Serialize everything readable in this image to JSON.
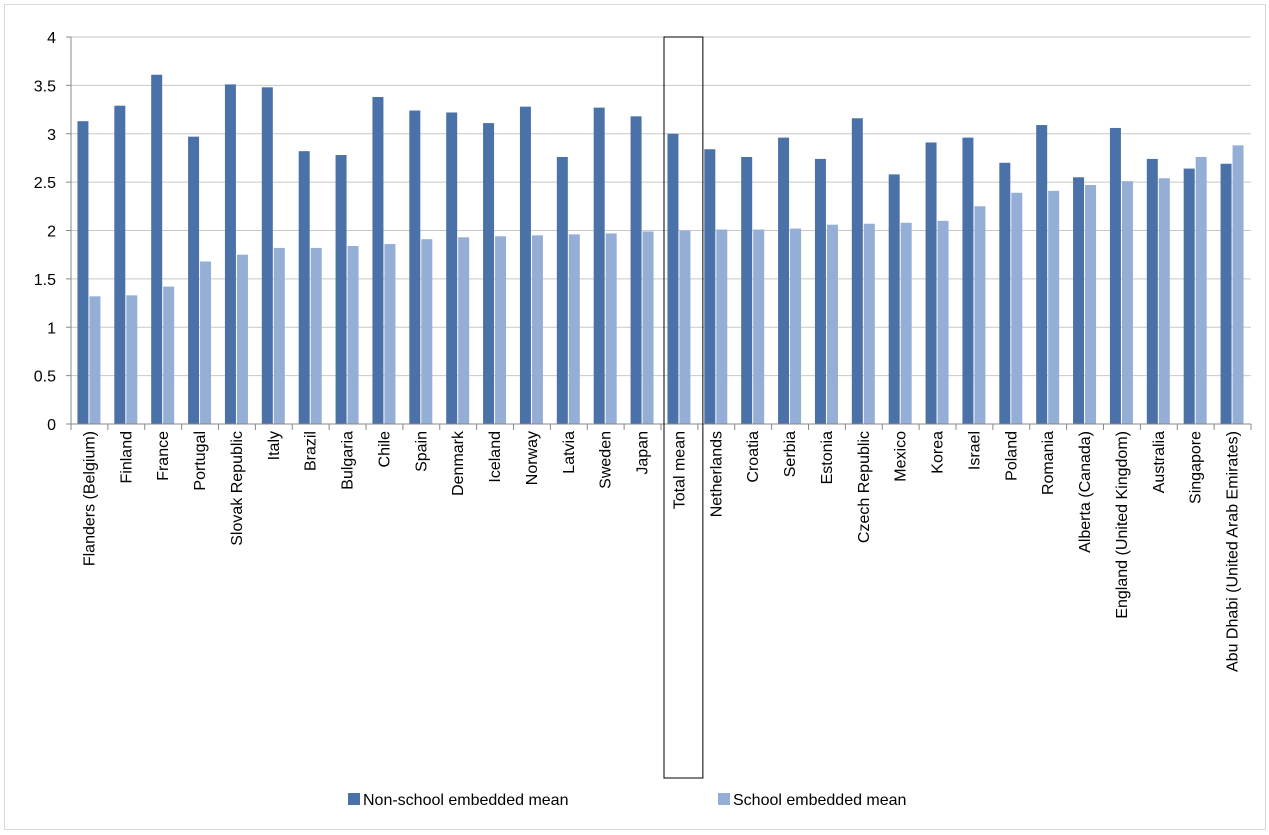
{
  "chart_data": {
    "type": "bar",
    "categories": [
      "Flanders (Belgium)",
      "Finland",
      "France",
      "Portugal",
      "Slovak Republic",
      "Italy",
      "Brazil",
      "Bulgaria",
      "Chile",
      "Spain",
      "Denmark",
      "Iceland",
      "Norway",
      "Latvia",
      "Sweden",
      "Japan",
      "Total mean",
      "Netherlands",
      "Croatia",
      "Serbia",
      "Estonia",
      "Czech Republic",
      "Mexico",
      "Korea",
      "Israel",
      "Poland",
      "Romania",
      "Alberta (Canada)",
      "England (United Kingdom)",
      "Australia",
      "Singapore",
      "Abu Dhabi (United Arab Emirates)"
    ],
    "series": [
      {
        "name": "Non-school embedded mean",
        "color": "#4a72a8",
        "values": [
          3.13,
          3.29,
          3.61,
          2.97,
          3.51,
          3.48,
          2.82,
          2.78,
          3.38,
          3.24,
          3.22,
          3.11,
          3.28,
          2.76,
          3.27,
          3.18,
          3.0,
          2.84,
          2.76,
          2.96,
          2.74,
          3.16,
          2.58,
          2.91,
          2.96,
          2.7,
          3.09,
          2.55,
          3.06,
          2.74,
          2.64,
          2.69
        ]
      },
      {
        "name": "School embedded mean",
        "color": "#95aed6",
        "values": [
          1.32,
          1.33,
          1.42,
          1.68,
          1.75,
          1.82,
          1.82,
          1.84,
          1.86,
          1.91,
          1.93,
          1.94,
          1.95,
          1.96,
          1.97,
          1.99,
          2.0,
          2.01,
          2.01,
          2.02,
          2.06,
          2.07,
          2.08,
          2.1,
          2.25,
          2.39,
          2.41,
          2.47,
          2.51,
          2.54,
          2.76,
          2.88
        ]
      }
    ],
    "ylim": [
      0,
      4
    ],
    "yticks": [
      "0",
      "0.5",
      "1",
      "1.5",
      "2",
      "2.5",
      "3",
      "3.5",
      "4"
    ],
    "highlighted_category": "Total mean",
    "legend_position": "bottom",
    "grid": true,
    "title": "",
    "xlabel": "",
    "ylabel": ""
  }
}
